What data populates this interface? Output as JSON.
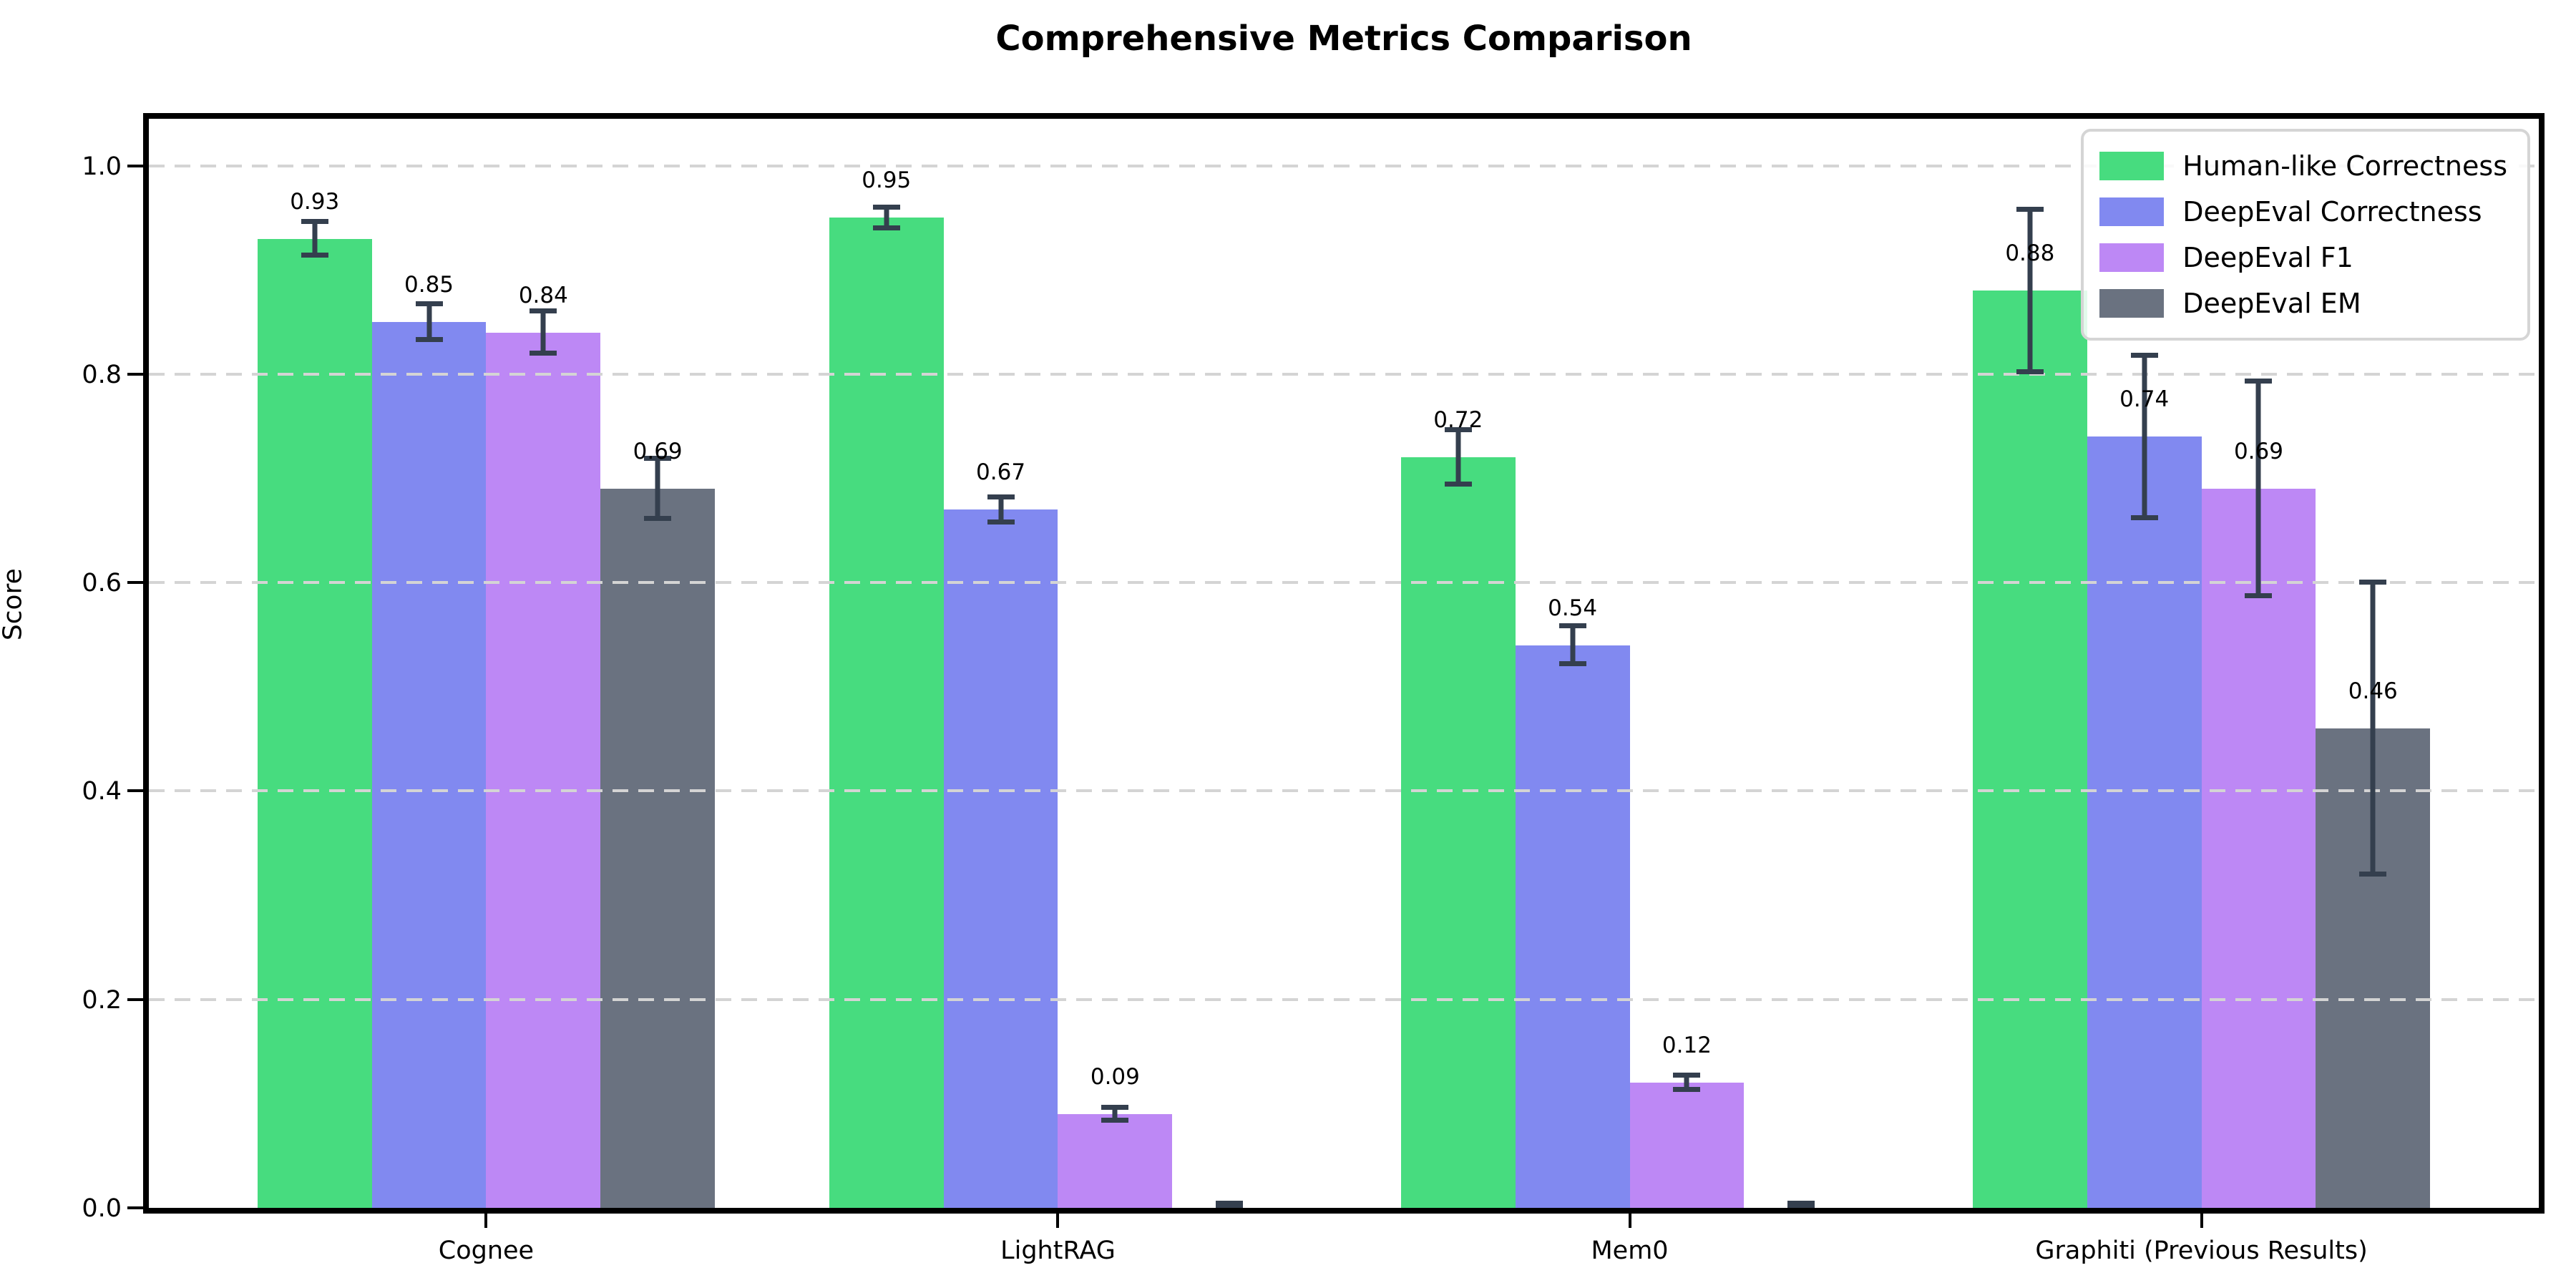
{
  "chart_data": {
    "type": "bar",
    "title": "Comprehensive Metrics Comparison",
    "xlabel": "",
    "ylabel": "Score",
    "categories": [
      "Cognee",
      "LightRAG",
      "Mem0",
      "Graphiti (Previous Results)"
    ],
    "series": [
      {
        "name": "Human-like Correctness",
        "color": "#47dc7f",
        "values": [
          0.93,
          0.95,
          0.72,
          0.88
        ],
        "errors": [
          0.016,
          0.01,
          0.026,
          0.078
        ],
        "labels": [
          "0.93",
          "0.95",
          "0.72",
          "0.88"
        ]
      },
      {
        "name": "DeepEval Correctness",
        "color": "#8189f0",
        "values": [
          0.85,
          0.67,
          0.54,
          0.74
        ],
        "errors": [
          0.017,
          0.012,
          0.018,
          0.078
        ],
        "labels": [
          "0.85",
          "0.67",
          "0.54",
          "0.74"
        ]
      },
      {
        "name": "DeepEval F1",
        "color": "#bd88f5",
        "values": [
          0.84,
          0.09,
          0.12,
          0.69
        ],
        "errors": [
          0.02,
          0.006,
          0.007,
          0.103
        ],
        "labels": [
          "0.84",
          "0.09",
          "0.12",
          "0.69"
        ]
      },
      {
        "name": "DeepEval EM",
        "color": "#6a7280",
        "values": [
          0.69,
          0.0,
          0.0,
          0.46
        ],
        "errors": [
          0.029,
          0.004,
          0.004,
          0.14
        ],
        "labels": [
          "0.69",
          null,
          null,
          "0.46"
        ]
      }
    ],
    "ylim": [
      0,
      1.045
    ],
    "yticks": [
      0.0,
      0.2,
      0.4,
      0.6,
      0.8,
      1.0
    ],
    "ytick_labels": [
      "0.0",
      "0.2",
      "0.4",
      "0.6",
      "0.8",
      "1.0"
    ],
    "xlim": [
      -0.59,
      3.59
    ],
    "bar_width": 0.2,
    "grid": "horizontal-dashed",
    "grid_color": "#d4d4d4",
    "error_bar_color": "#343f4e",
    "legend_position": "upper right"
  }
}
